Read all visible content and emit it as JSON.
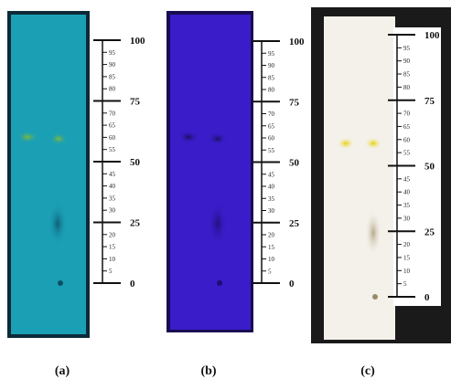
{
  "panels": [
    {
      "caption": "(a)",
      "ruler": [
        0,
        5,
        10,
        15,
        20,
        25,
        30,
        35,
        40,
        45,
        50,
        55,
        60,
        65,
        70,
        75,
        80,
        85,
        90,
        95,
        100
      ]
    },
    {
      "caption": "(b)",
      "ruler": [
        0,
        5,
        10,
        15,
        20,
        25,
        30,
        35,
        40,
        45,
        50,
        55,
        60,
        65,
        70,
        75,
        80,
        85,
        90,
        95,
        100
      ]
    },
    {
      "caption": "(c)",
      "ruler": [
        0,
        5,
        10,
        15,
        20,
        25,
        30,
        35,
        40,
        45,
        50,
        55,
        60,
        65,
        70,
        75,
        80,
        85,
        90,
        95,
        100
      ]
    }
  ]
}
